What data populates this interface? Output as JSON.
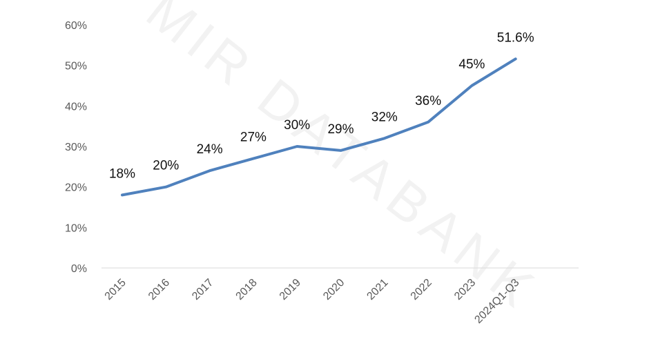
{
  "watermark": "MIR DATABANK",
  "chart_data": {
    "type": "line",
    "categories": [
      "2015",
      "2016",
      "2017",
      "2018",
      "2019",
      "2020",
      "2021",
      "2022",
      "2023",
      "2024Q1-Q3"
    ],
    "values": [
      18,
      20,
      24,
      27,
      30,
      29,
      32,
      36,
      45,
      51.6
    ],
    "data_labels": [
      "18%",
      "20%",
      "24%",
      "27%",
      "30%",
      "29%",
      "32%",
      "36%",
      "45%",
      "51.6%"
    ],
    "y_ticks": [
      "0%",
      "10%",
      "20%",
      "30%",
      "40%",
      "50%",
      "60%"
    ],
    "ylim": [
      0,
      60
    ],
    "line_color": "#4F81BD",
    "grid": false,
    "legend": "none",
    "title": "",
    "xlabel": "",
    "ylabel": ""
  }
}
